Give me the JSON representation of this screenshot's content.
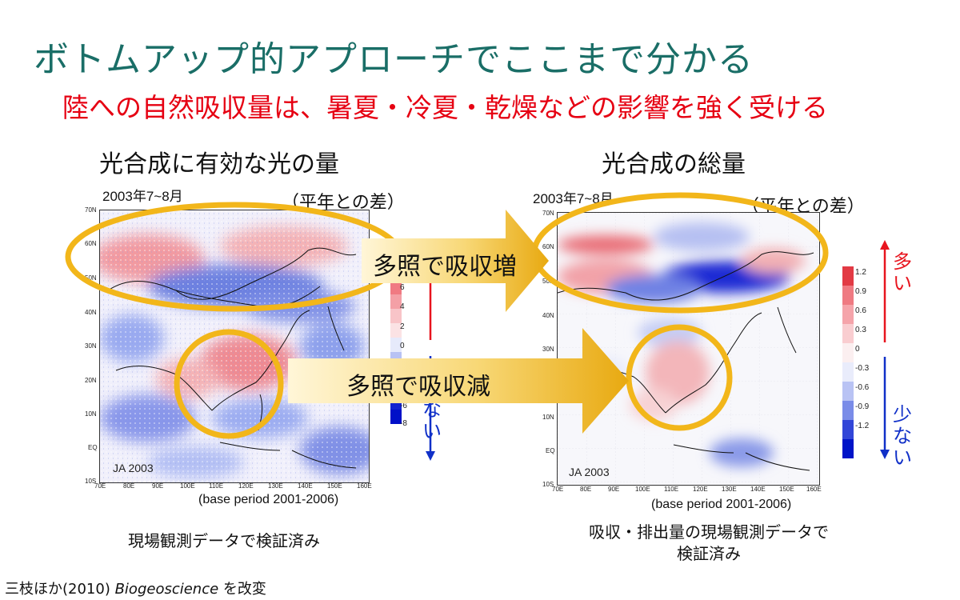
{
  "slide": {
    "title": "ボトムアップ的アプローチでここまで分かる",
    "subtitle": "陸への自然吸収量は、暑夏・冷夏・乾燥などの影響を強く受ける",
    "citation_prefix": "三枝ほか(2010) ",
    "citation_journal": "Biogeoscience",
    "citation_suffix": " を改変"
  },
  "left_panel": {
    "heading": "光合成に有効な光の量",
    "period": "2003年7~8月",
    "anomaly_label": "（平年との差）",
    "stamp": "JA  2003",
    "base_period": "(base period 2001-2006)",
    "verification": "現場観測データで検証済み",
    "colorbar_ticks": [
      "6",
      "4",
      "2",
      "0",
      "-6",
      "-8"
    ],
    "word_few": [
      "な",
      "い"
    ]
  },
  "right_panel": {
    "heading": "光合成の総量",
    "period": "2003年7~8月",
    "anomaly_label": "（平年との差）",
    "stamp": "JA  2003",
    "base_period": "(base period 2001-2006)",
    "verification_line1": "吸収・排出量の現場観測データで",
    "verification_line2": "検証済み",
    "colorbar_ticks": [
      "1.2",
      "0.9",
      "0.6",
      "0.3",
      "0",
      "-0.3",
      "-0.6",
      "-0.9",
      "-1.2"
    ],
    "word_many": [
      "多",
      "い"
    ],
    "word_few": [
      "少",
      "な",
      "い"
    ]
  },
  "arrows": {
    "upper_label": "多照で吸収増",
    "lower_label": "多照で吸収減"
  },
  "map_axes": {
    "lat_labels": [
      "70N",
      "60N",
      "50N",
      "40N",
      "30N",
      "20N",
      "10N",
      "EQ",
      "10S"
    ],
    "lon_labels": [
      "70E",
      "80E",
      "90E",
      "100E",
      "110E",
      "120E",
      "130E",
      "140E",
      "150E",
      "160E"
    ]
  },
  "colors": {
    "title": "#1a6e67",
    "subtitle": "#e60012",
    "highlight_ring": "#f2b61a",
    "positive": "#e8141e",
    "negative": "#1030c8"
  }
}
